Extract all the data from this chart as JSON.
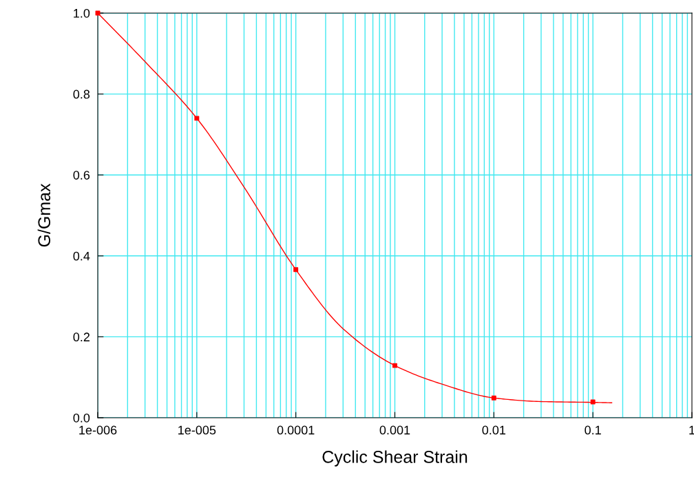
{
  "chart_data": {
    "type": "line",
    "xlabel": "Cyclic Shear Strain",
    "ylabel": "G/Gmax",
    "log": "x",
    "grid": true,
    "xlim": [
      1e-06,
      1
    ],
    "ylim": [
      0,
      1
    ],
    "xticks": [
      {
        "value": 1e-06,
        "label": "1e-006"
      },
      {
        "value": 1e-05,
        "label": "1e-005"
      },
      0.0001,
      0.001,
      0.01,
      0.1,
      1
    ],
    "yticks": [
      {
        "value": 0,
        "label": "0.0"
      },
      {
        "value": 0.2,
        "label": "0.2"
      },
      {
        "value": 0.4,
        "label": "0.4"
      },
      {
        "value": 0.6,
        "label": "0.6"
      },
      {
        "value": 0.8,
        "label": "0.8"
      },
      {
        "value": 1,
        "label": "1.0"
      }
    ],
    "series": [
      {
        "color": "#ff0000",
        "marker": "none",
        "x": [
          1e-06,
          3e-06,
          1e-05,
          3e-05,
          0.0001,
          0.0003,
          0.001,
          0.003,
          0.01,
          0.03,
          0.1,
          0.155
        ],
        "values": [
          1.0,
          0.88,
          0.74,
          0.57,
          0.366,
          0.22,
          0.129,
          0.083,
          0.049,
          0.04,
          0.038,
          0.037
        ]
      },
      {
        "type": "scatter",
        "color": "#ff0000",
        "marker": "square",
        "x": [
          1e-06,
          1e-05,
          0.0001,
          0.001,
          0.01,
          0.1
        ],
        "values": [
          1.0,
          0.74,
          0.366,
          0.129,
          0.049,
          0.039
        ]
      }
    ]
  }
}
